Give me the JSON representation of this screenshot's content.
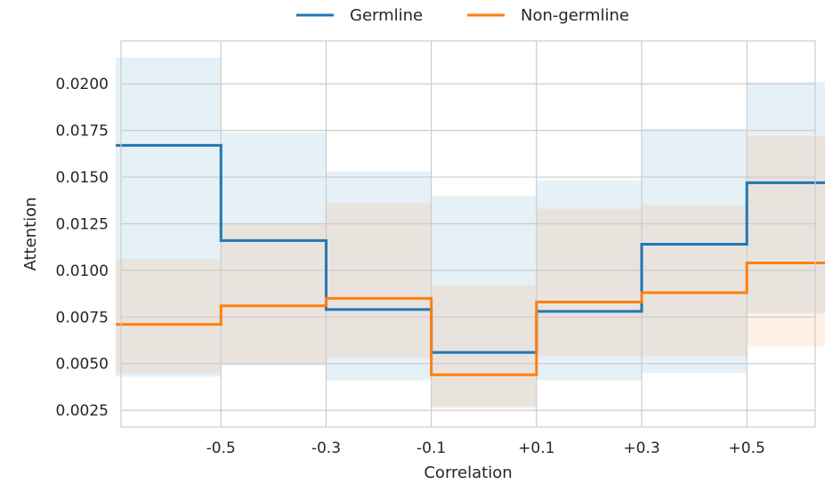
{
  "chart_data": {
    "type": "line",
    "step": true,
    "xlabel": "Correlation",
    "ylabel": "Attention",
    "x_edges": [
      -0.7,
      -0.5,
      -0.3,
      -0.1,
      0.1,
      0.3,
      0.5,
      0.65
    ],
    "x_ticks": [
      {
        "value": -0.5,
        "label": "-0.5"
      },
      {
        "value": -0.3,
        "label": "-0.3"
      },
      {
        "value": -0.1,
        "label": "-0.1"
      },
      {
        "value": 0.1,
        "label": "+0.1"
      },
      {
        "value": 0.3,
        "label": "+0.3"
      },
      {
        "value": 0.5,
        "label": "+0.5"
      }
    ],
    "y_ticks": [
      {
        "value": 0.0025,
        "label": "0.0025"
      },
      {
        "value": 0.005,
        "label": "0.0050"
      },
      {
        "value": 0.0075,
        "label": "0.0075"
      },
      {
        "value": 0.01,
        "label": "0.0100"
      },
      {
        "value": 0.0125,
        "label": "0.0125"
      },
      {
        "value": 0.015,
        "label": "0.0150"
      },
      {
        "value": 0.0175,
        "label": "0.0175"
      },
      {
        "value": 0.02,
        "label": "0.0200"
      }
    ],
    "xlim": [
      -0.69,
      0.63
    ],
    "ylim": [
      0.0016,
      0.0223
    ],
    "grid": true,
    "legend_position": "top-center",
    "series": [
      {
        "name": "Germline",
        "color": "#1f77b4",
        "band_color": "#dce8f5",
        "values": [
          0.0167,
          0.0116,
          0.0079,
          0.0056,
          0.0078,
          0.0114,
          0.0147
        ],
        "lower": [
          0.0043,
          0.0049,
          0.0041,
          0.0027,
          0.0041,
          0.0045,
          0.0077
        ],
        "upper": [
          0.0214,
          0.0174,
          0.0153,
          0.014,
          0.0148,
          0.0176,
          0.0201
        ]
      },
      {
        "name": "Non-germline",
        "color": "#ff7f0e",
        "band_color": "#fde9d9",
        "values": [
          0.0071,
          0.0081,
          0.0085,
          0.0044,
          0.0083,
          0.0088,
          0.0104
        ],
        "lower": [
          0.0045,
          0.005,
          0.0053,
          0.0026,
          0.0054,
          0.0054,
          0.0059
        ],
        "upper": [
          0.0106,
          0.0125,
          0.0136,
          0.0092,
          0.0133,
          0.0135,
          0.0172
        ]
      }
    ]
  }
}
